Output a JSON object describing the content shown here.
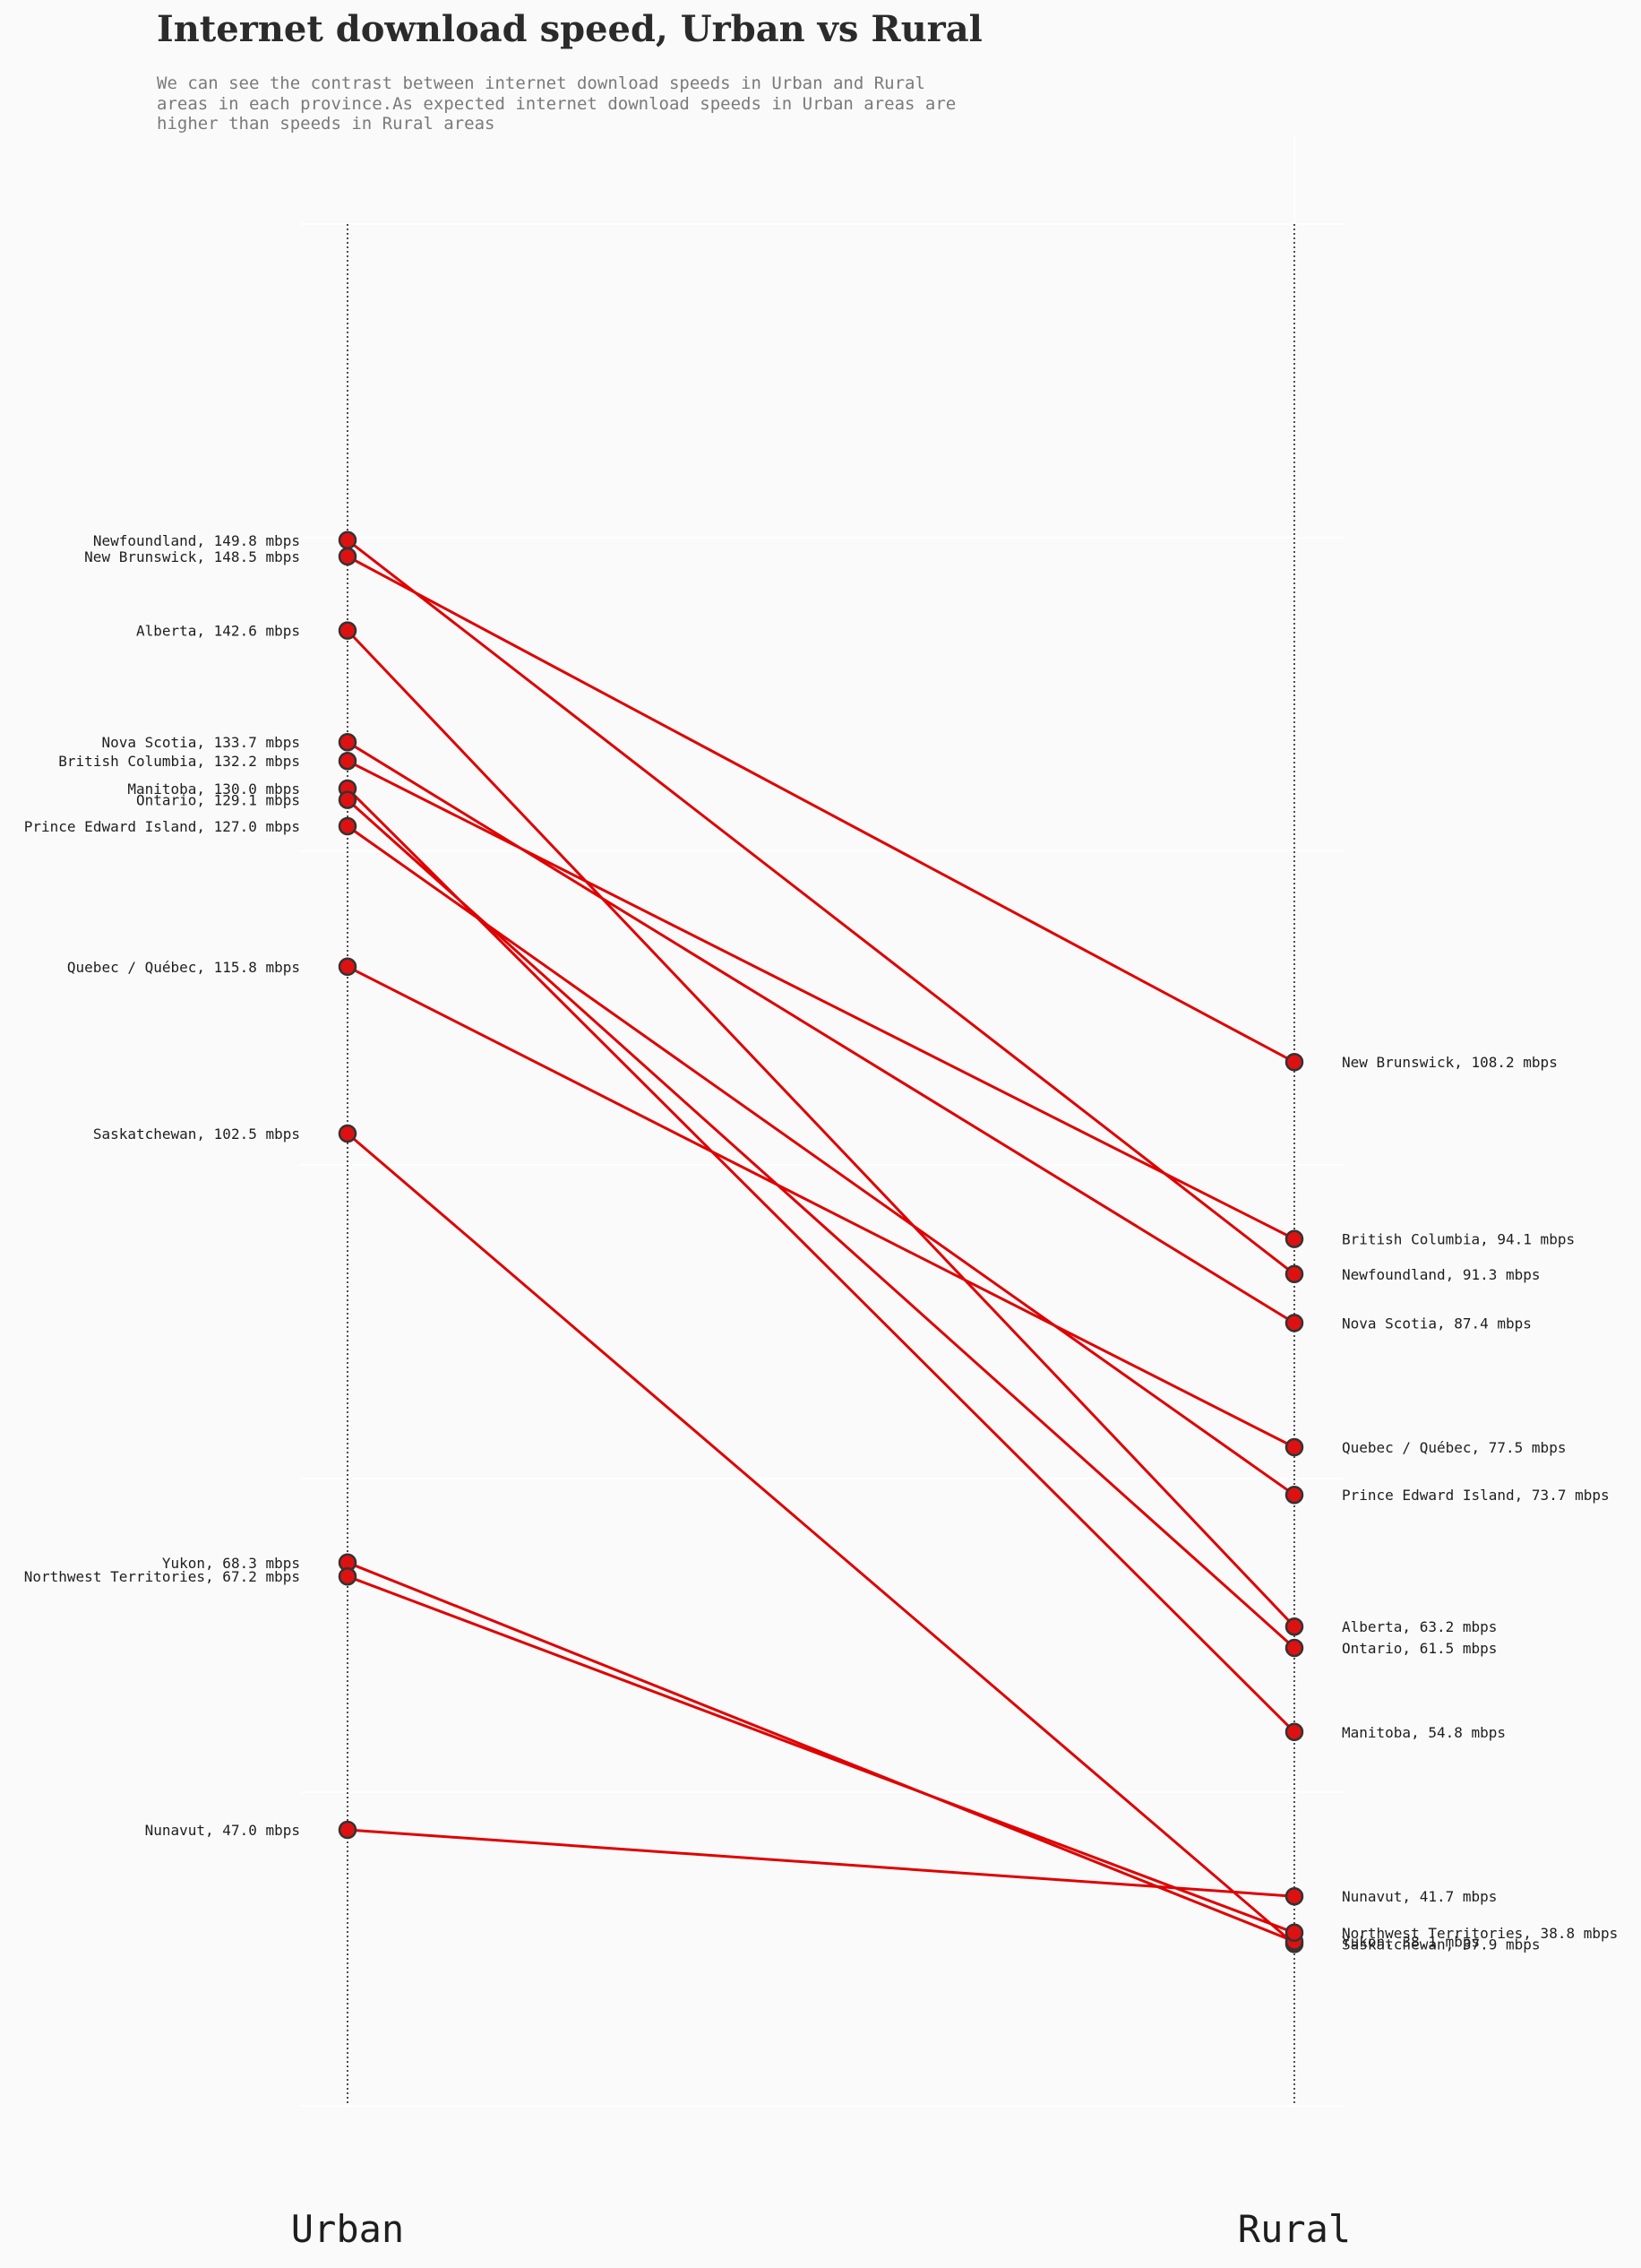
{
  "chart_data": {
    "type": "slope",
    "title": "Internet download speed, Urban vs Rural",
    "subtitle": [
      "We can see the contrast between internet download speeds in Urban and Rural",
      "areas in each province.As expected internet download speeds in Urban areas are",
      "higher than speeds in Rural areas"
    ],
    "categories": [
      "Urban",
      "Rural"
    ],
    "unit": "mbps",
    "ylim": [
      25,
      175
    ],
    "grid": true,
    "colors": {
      "line": "#e00000",
      "marker": "#dd1111",
      "marker_edge": "#333333",
      "axis": "#222222"
    },
    "series": [
      {
        "name": "Newfoundland",
        "urban": 149.8,
        "rural": 91.3
      },
      {
        "name": "New Brunswick",
        "urban": 148.5,
        "rural": 108.2
      },
      {
        "name": "Alberta",
        "urban": 142.6,
        "rural": 63.2
      },
      {
        "name": "Nova Scotia",
        "urban": 133.7,
        "rural": 87.4
      },
      {
        "name": "British Columbia",
        "urban": 132.2,
        "rural": 94.1
      },
      {
        "name": "Manitoba",
        "urban": 130.0,
        "rural": 54.8
      },
      {
        "name": "Ontario",
        "urban": 129.1,
        "rural": 61.5
      },
      {
        "name": "Prince Edward Island",
        "urban": 127.0,
        "rural": 73.7
      },
      {
        "name": "Quebec / Québec",
        "urban": 115.8,
        "rural": 77.5
      },
      {
        "name": "Saskatchewan",
        "urban": 102.5,
        "rural": 37.9
      },
      {
        "name": "Yukon",
        "urban": 68.3,
        "rural": 38.1
      },
      {
        "name": "Northwest Territories",
        "urban": 67.2,
        "rural": 38.8
      },
      {
        "name": "Nunavut",
        "urban": 47.0,
        "rural": 41.7
      }
    ]
  }
}
